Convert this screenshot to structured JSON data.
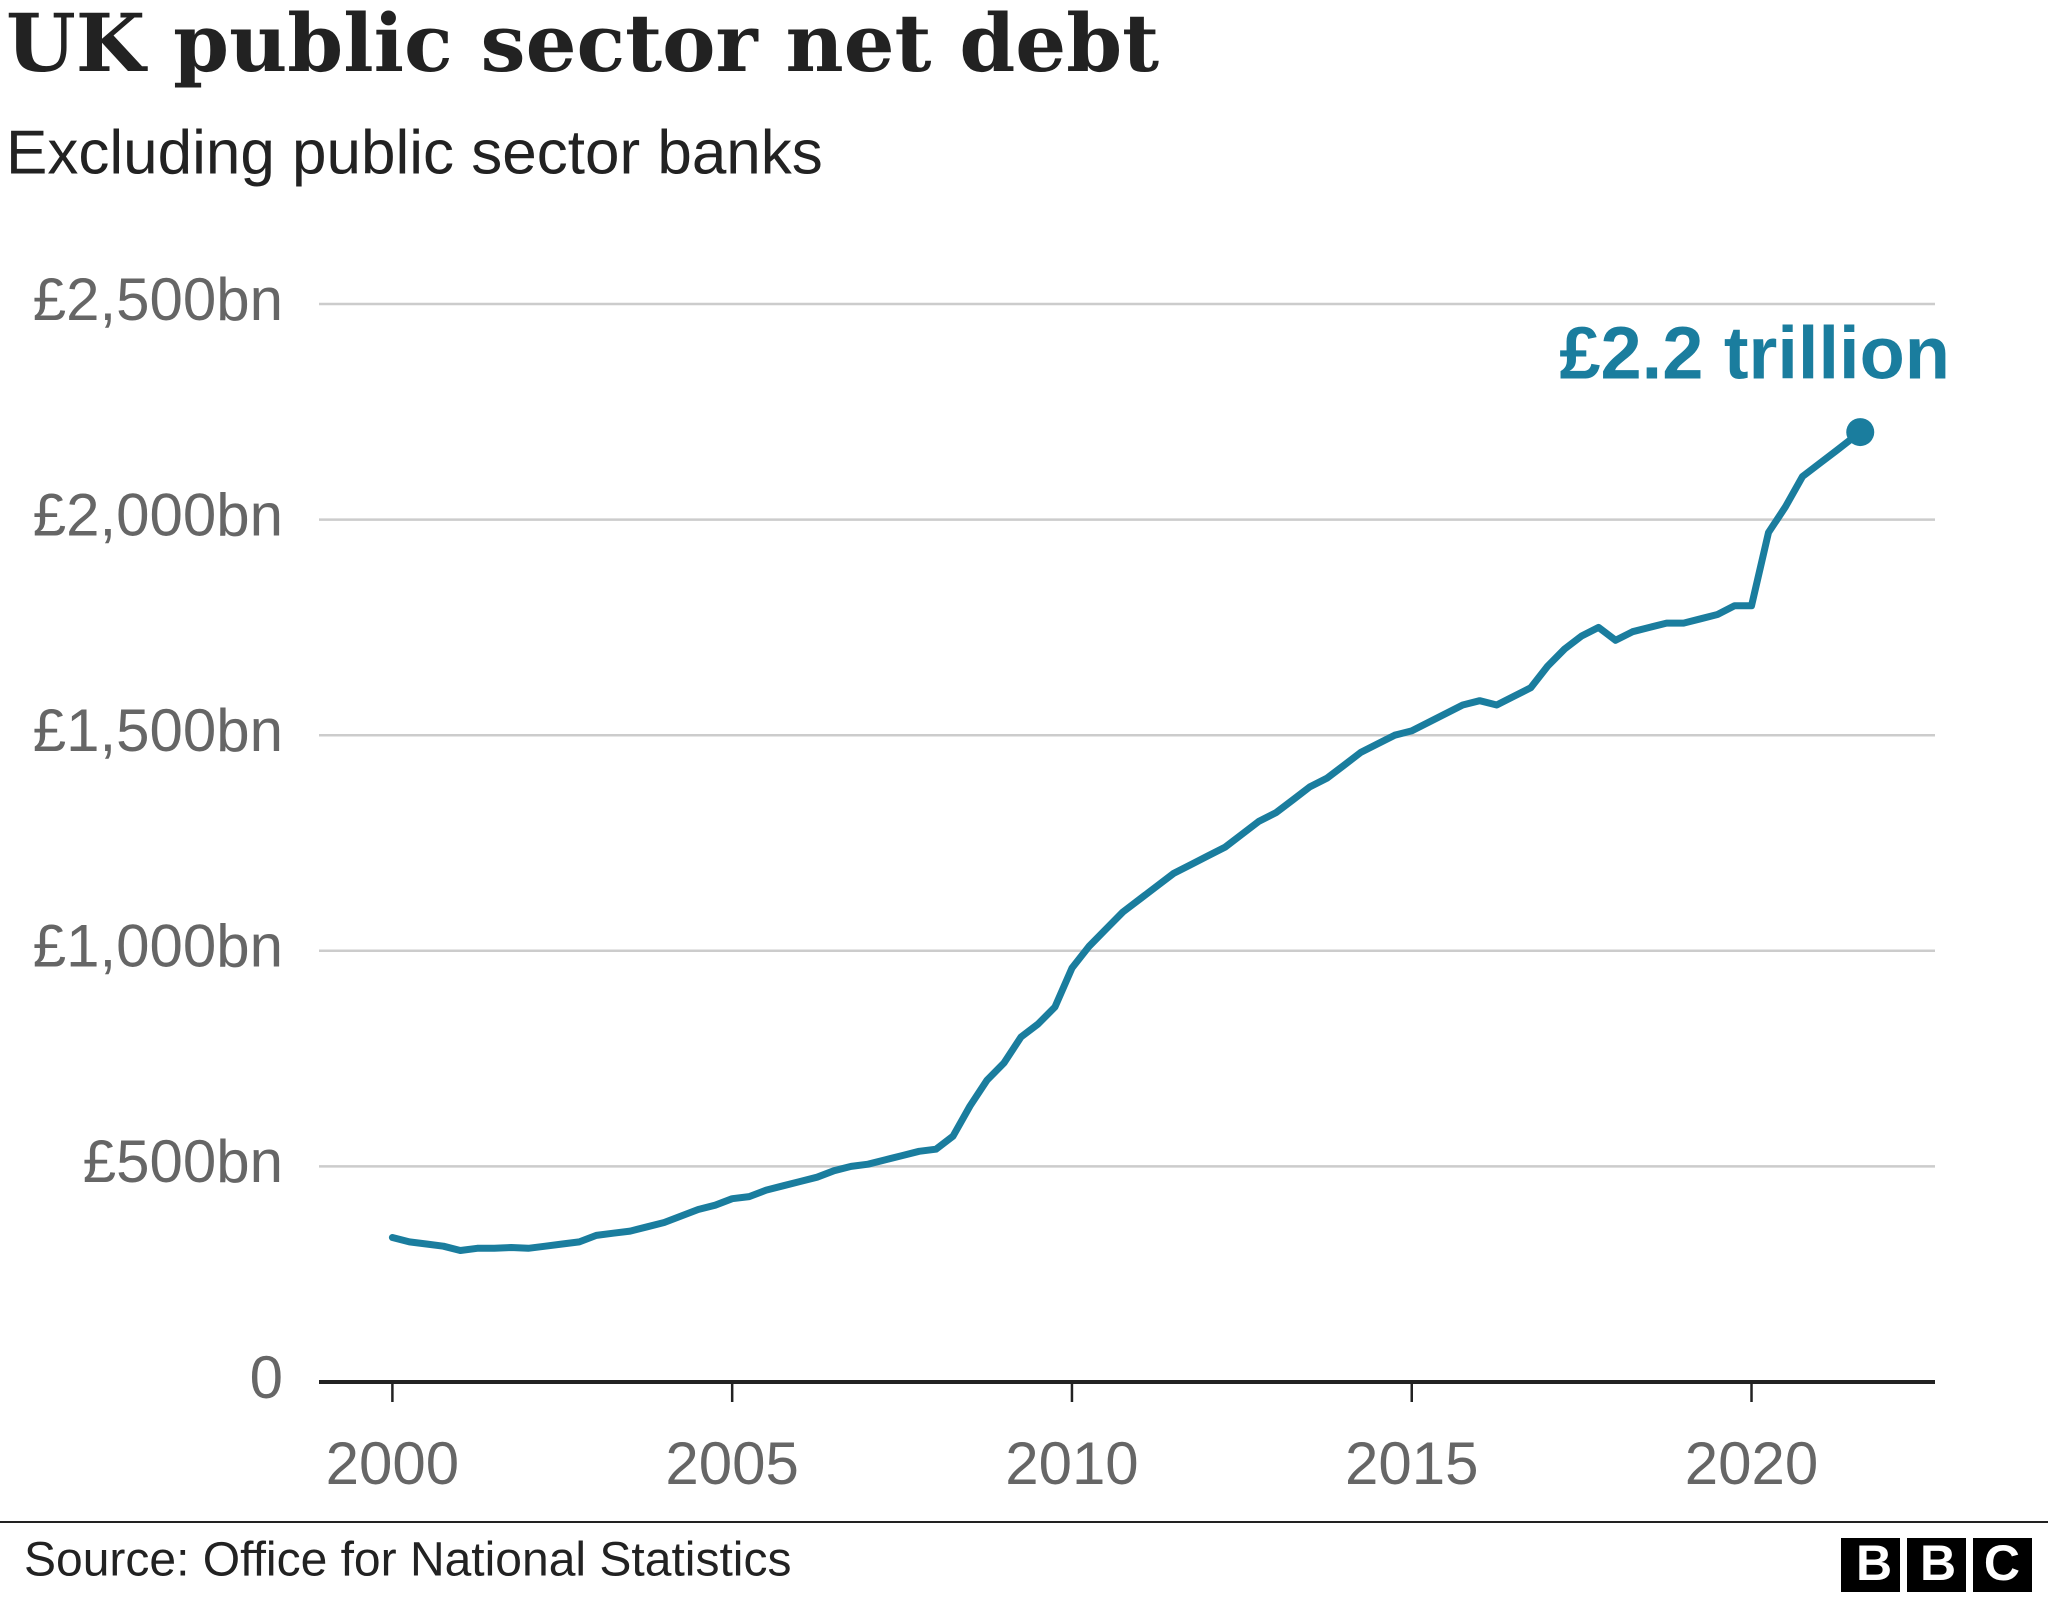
{
  "chart_data": {
    "type": "line",
    "title": "UK public sector net debt",
    "subtitle": "Excluding public sector banks",
    "source": "Source: Office for National Statistics",
    "brand": "BBC",
    "annotation": "£2.2 trillion",
    "color": "#1a7d9e",
    "x": [
      2000,
      2000.25,
      2000.5,
      2000.75,
      2001,
      2001.25,
      2001.5,
      2001.75,
      2002,
      2002.25,
      2002.5,
      2002.75,
      2003,
      2003.25,
      2003.5,
      2003.75,
      2004,
      2004.25,
      2004.5,
      2004.75,
      2005,
      2005.25,
      2005.5,
      2005.75,
      2006,
      2006.25,
      2006.5,
      2006.75,
      2007,
      2007.25,
      2007.5,
      2007.75,
      2008,
      2008.25,
      2008.5,
      2008.75,
      2009,
      2009.25,
      2009.5,
      2009.75,
      2010,
      2010.25,
      2010.5,
      2010.75,
      2011,
      2011.25,
      2011.5,
      2011.75,
      2012,
      2012.25,
      2012.5,
      2012.75,
      2013,
      2013.25,
      2013.5,
      2013.75,
      2014,
      2014.25,
      2014.5,
      2014.75,
      2015,
      2015.25,
      2015.5,
      2015.75,
      2016,
      2016.25,
      2016.5,
      2016.75,
      2017,
      2017.25,
      2017.5,
      2017.75,
      2018,
      2018.25,
      2018.5,
      2018.75,
      2019,
      2019.25,
      2019.5,
      2019.75,
      2020,
      2020.25,
      2020.5,
      2020.75,
      2021,
      2021.25,
      2021.6
    ],
    "values": [
      335,
      325,
      320,
      315,
      305,
      310,
      310,
      312,
      310,
      315,
      320,
      325,
      340,
      345,
      350,
      360,
      370,
      385,
      400,
      410,
      425,
      430,
      445,
      455,
      465,
      475,
      490,
      500,
      505,
      515,
      525,
      535,
      540,
      570,
      640,
      700,
      740,
      800,
      830,
      870,
      960,
      1010,
      1050,
      1090,
      1120,
      1150,
      1180,
      1200,
      1220,
      1240,
      1270,
      1300,
      1320,
      1350,
      1380,
      1400,
      1430,
      1460,
      1480,
      1500,
      1510,
      1530,
      1550,
      1570,
      1580,
      1570,
      1590,
      1610,
      1660,
      1700,
      1730,
      1750,
      1720,
      1740,
      1750,
      1760,
      1760,
      1770,
      1780,
      1800,
      1800,
      1970,
      2030,
      2100,
      2130,
      2160,
      2203
    ],
    "xlim": [
      1998.92,
      2022.7
    ],
    "xticks": [
      2000,
      2005,
      2010,
      2015,
      2020
    ],
    "ylim": [
      0,
      2500
    ],
    "yticks": [
      0,
      {
        "value": 500,
        "label": "£500bn"
      },
      {
        "value": 1000,
        "label": "£1,000bn"
      },
      {
        "value": 1500,
        "label": "£1,500bn"
      },
      {
        "value": 2000,
        "label": "£2,000bn"
      },
      {
        "value": 2500,
        "label": "£2,500bn"
      }
    ],
    "grid": true
  }
}
